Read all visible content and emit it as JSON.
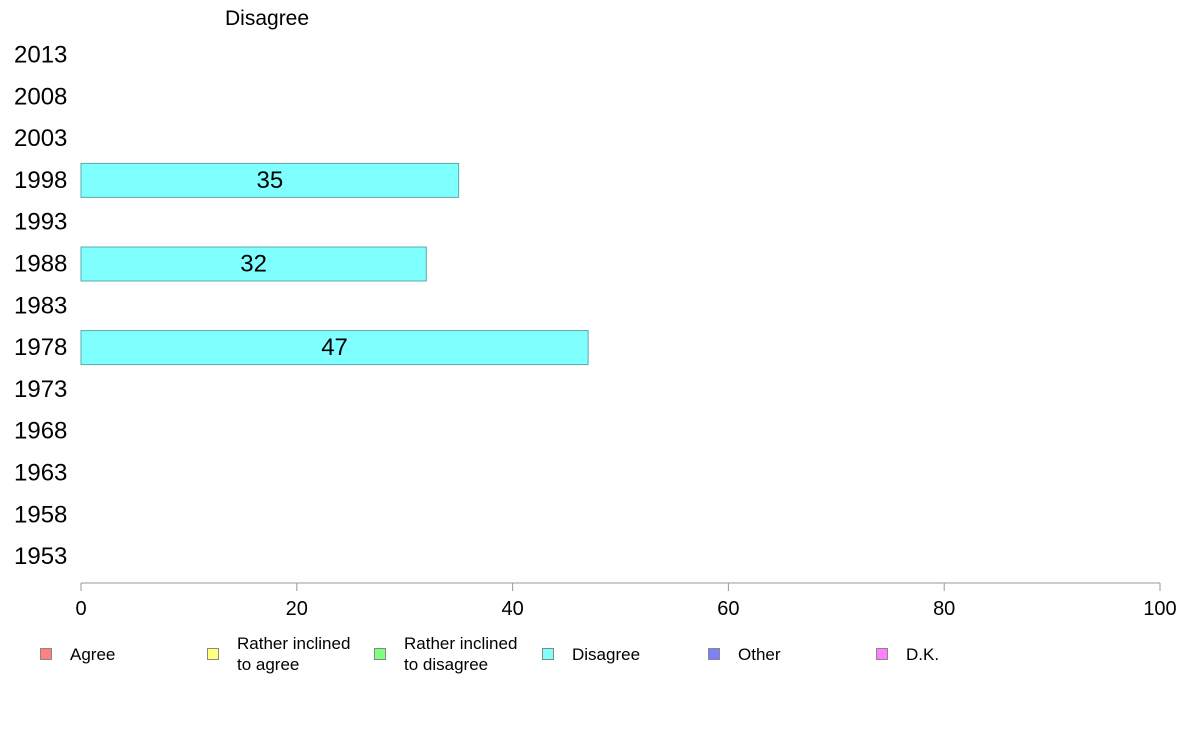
{
  "chart_data": {
    "type": "bar",
    "orientation": "horizontal",
    "title": "Disagree",
    "categories": [
      "2013",
      "2008",
      "2003",
      "1998",
      "1993",
      "1988",
      "1983",
      "1978",
      "1973",
      "1968",
      "1963",
      "1958",
      "1953"
    ],
    "series": [
      {
        "name": "Disagree",
        "color": "#80ffff",
        "values": [
          null,
          null,
          null,
          35,
          null,
          32,
          null,
          47,
          null,
          null,
          null,
          null,
          null
        ]
      }
    ],
    "xlim": [
      0,
      100
    ],
    "xticks": [
      0,
      20,
      40,
      60,
      80,
      100
    ],
    "xlabel": "",
    "ylabel": "",
    "grid": false,
    "legend_position": "bottom",
    "legend": [
      {
        "label": "Agree",
        "color": "#ff8080"
      },
      {
        "label": "Rather inclined\nto agree",
        "color": "#ffff80"
      },
      {
        "label": "Rather inclined\nto disagree",
        "color": "#80ff80"
      },
      {
        "label": "Disagree",
        "color": "#80ffff"
      },
      {
        "label": "Other",
        "color": "#8080ff"
      },
      {
        "label": "D.K.",
        "color": "#ff80ff"
      }
    ]
  }
}
